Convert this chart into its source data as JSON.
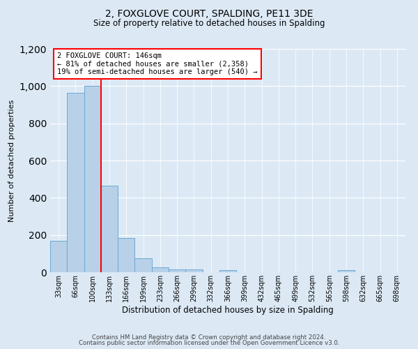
{
  "title": "2, FOXGLOVE COURT, SPALDING, PE11 3DE",
  "subtitle": "Size of property relative to detached houses in Spalding",
  "xlabel": "Distribution of detached houses by size in Spalding",
  "ylabel": "Number of detached properties",
  "bin_labels": [
    "33sqm",
    "66sqm",
    "100sqm",
    "133sqm",
    "166sqm",
    "199sqm",
    "233sqm",
    "266sqm",
    "299sqm",
    "332sqm",
    "366sqm",
    "399sqm",
    "432sqm",
    "465sqm",
    "499sqm",
    "532sqm",
    "565sqm",
    "598sqm",
    "632sqm",
    "665sqm",
    "698sqm"
  ],
  "bar_values": [
    170,
    965,
    1000,
    465,
    185,
    75,
    25,
    15,
    15,
    0,
    10,
    0,
    0,
    0,
    0,
    0,
    0,
    10,
    0,
    0,
    0
  ],
  "bar_color": "#b8d0e8",
  "bar_edge_color": "#6aaad4",
  "vline_x": 3,
  "vline_color": "red",
  "annotation_title": "2 FOXGLOVE COURT: 146sqm",
  "annotation_line1": "← 81% of detached houses are smaller (2,358)",
  "annotation_line2": "19% of semi-detached houses are larger (540) →",
  "annotation_box_color": "white",
  "annotation_box_edge": "red",
  "ylim": [
    0,
    1200
  ],
  "yticks": [
    0,
    200,
    400,
    600,
    800,
    1000,
    1200
  ],
  "footer_line1": "Contains HM Land Registry data © Crown copyright and database right 2024.",
  "footer_line2": "Contains public sector information licensed under the Open Government Licence v3.0.",
  "background_color": "#dce9f5",
  "plot_background": "#dce9f5"
}
